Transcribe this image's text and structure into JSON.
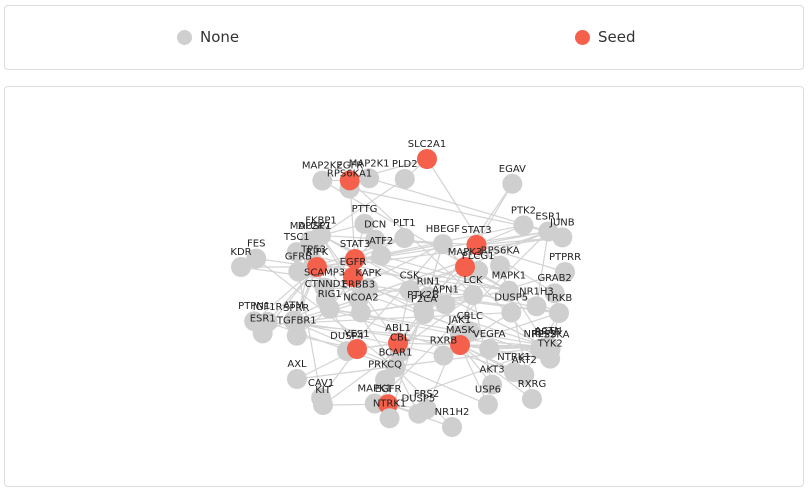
{
  "legend": {
    "none_label": "None",
    "seed_label": "Seed",
    "none_color": "#cfcfcf",
    "seed_color": "#f4604c"
  },
  "colors": {
    "edge": "#d3d3d3",
    "node": "#cfcfcf",
    "seed": "#f4604c",
    "label": "#222222"
  },
  "graph": {
    "seeds": [
      "SLC2A1",
      "EGFR",
      "RIPK",
      "STAT3",
      "MAPK3",
      "ABL1",
      "MASK",
      "YES1"
    ],
    "labels": [
      "SLC2A1",
      "CBLC",
      "ATM",
      "BRAF",
      "DUSP1",
      "MAPK1",
      "ATF2",
      "SCAMP3",
      "DCN",
      "TSC1",
      "P2CA",
      "JUNB",
      "VEGFA",
      "PLCG1",
      "TGFBR1",
      "PTTG",
      "USP6",
      "RIG1",
      "TP53",
      "AKT3",
      "DUSP4",
      "PPSSKA",
      "DUSP5",
      "CTNND1",
      "FKBP1",
      "EGFR",
      "JAK1",
      "ERBB3",
      "DUSP5",
      "RPS6KA1",
      "RPS6KA",
      "SPRR",
      "ESR1",
      "KDR",
      "CBL",
      "PLT1",
      "EGFR",
      "EGAV",
      "ESR1",
      "PLD2",
      "MAPK3",
      "RIPK",
      "STAT3",
      "EGFR",
      "NTRK1",
      "MAPK1",
      "MAP2K7",
      "TYK2",
      "PTPN1",
      "PTPRR",
      "NTRK1",
      "STAT3",
      "LCK",
      "MAP2K1",
      "MAP2K2",
      "FRS2",
      "PTK2B",
      "RIN1",
      "FES",
      "HBEGF",
      "KAPK",
      "PRKCQ",
      "YES1",
      "ABL1",
      "MASK",
      "CSK",
      "TRKB",
      "NCOA2",
      "NR2F2",
      "GRAB2",
      "IGF1R",
      "CAV1",
      "AXL",
      "BCAR1",
      "ACTN",
      "APN1",
      "RXRB",
      "NR1H3",
      "RXRG",
      "KIT",
      "GFRB",
      "AKT2",
      "NR1H2",
      "PTK2"
    ]
  }
}
